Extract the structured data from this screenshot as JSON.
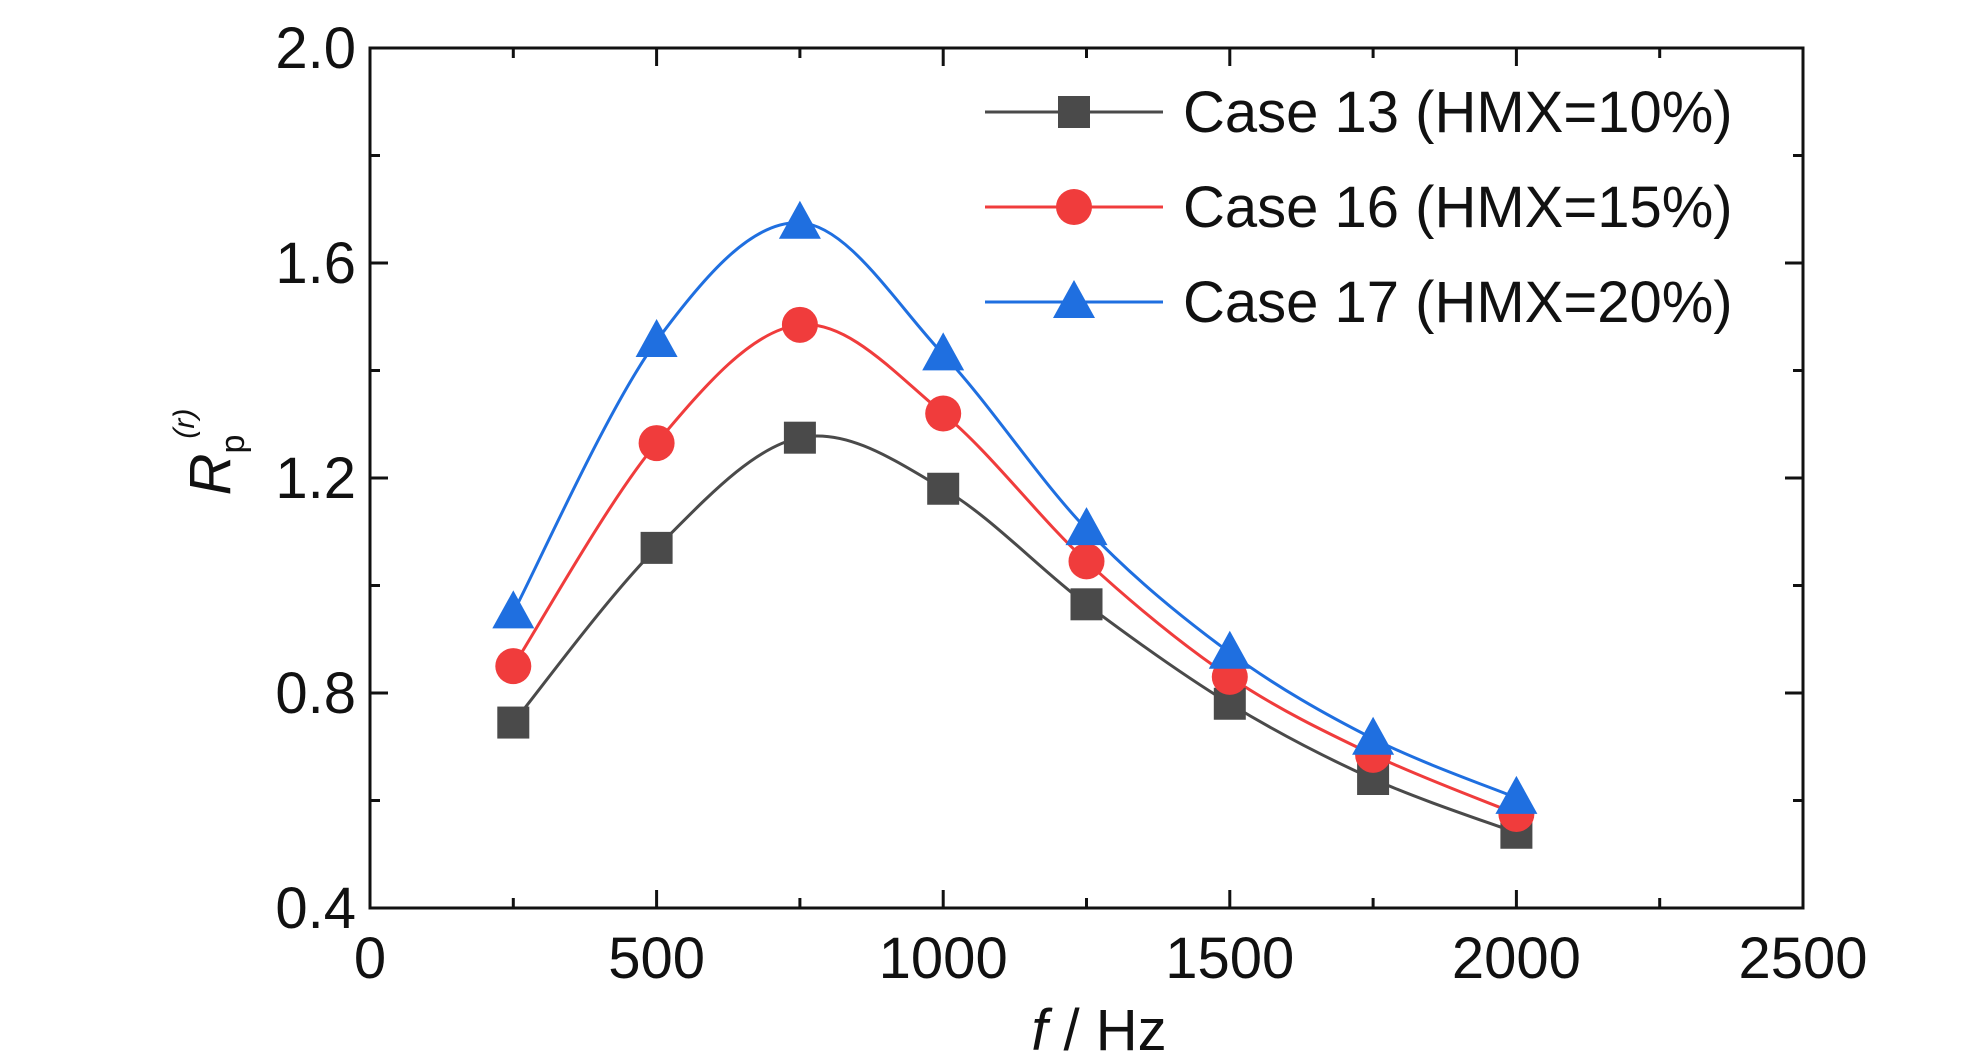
{
  "chart_data": {
    "type": "line",
    "xlabel_italic": "f",
    "xlabel_rest": " / Hz",
    "ylabel_main": "R",
    "ylabel_sub": "p",
    "ylabel_sup": "(r)",
    "xlim": [
      0,
      2500
    ],
    "ylim": [
      0.4,
      2.0
    ],
    "x_ticks": [
      0,
      500,
      1000,
      1500,
      2000,
      2500
    ],
    "x_tick_labels": [
      "0",
      "500",
      "1000",
      "1500",
      "2000",
      "2500"
    ],
    "y_ticks": [
      0.4,
      0.8,
      1.2,
      1.6,
      2.0
    ],
    "y_tick_labels": [
      "0.4",
      "0.8",
      "1.2",
      "1.6",
      "2.0"
    ],
    "grid": false,
    "legend_position": "top-right",
    "x": [
      250,
      500,
      750,
      1000,
      1250,
      1500,
      1750,
      2000
    ],
    "series": [
      {
        "name": "Case 13 (HMX=10%)",
        "color": "#4a4a4a",
        "marker": "square",
        "values": [
          0.745,
          1.07,
          1.275,
          1.18,
          0.965,
          0.78,
          0.64,
          0.54
        ]
      },
      {
        "name": "Case 16 (HMX=15%)",
        "color": "#f03c3c",
        "marker": "circle",
        "values": [
          0.85,
          1.265,
          1.485,
          1.32,
          1.045,
          0.83,
          0.685,
          0.575
        ]
      },
      {
        "name": "Case 17 (HMX=20%)",
        "color": "#1f6fe0",
        "marker": "triangle",
        "values": [
          0.95,
          1.455,
          1.675,
          1.43,
          1.105,
          0.875,
          0.715,
          0.605
        ]
      }
    ]
  }
}
